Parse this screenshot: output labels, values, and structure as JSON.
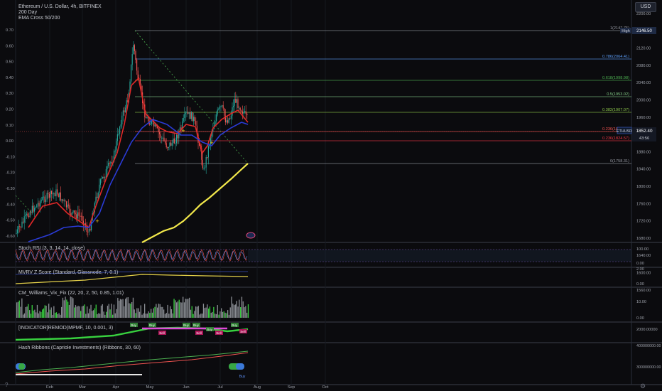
{
  "header": {
    "title": "Ethereum / U.S. Dollar, 4h, BITFINEX",
    "indicator1": "200 Day",
    "indicator2": "EMA Cross 50/200"
  },
  "currency_button": "USD",
  "left_axis": [
    "0.70",
    "0.60",
    "0.50",
    "0.40",
    "0.30",
    "0.20",
    "0.10",
    "0.00",
    "-0.10",
    "-0.20",
    "-0.30",
    "-0.40",
    "-0.50",
    "-0.60"
  ],
  "right_axis": [
    "2200.00",
    "2160.00",
    "2120.00",
    "2080.00",
    "2040.00",
    "2000.00",
    "1960.00",
    "1920.00",
    "1880.00",
    "1840.00",
    "1800.00",
    "1760.00",
    "1720.00",
    "1680.00",
    "1640.00",
    "1600.00",
    "1560.00"
  ],
  "fib_labels": [
    "1(2147.75)",
    "0.786(2064.41)",
    "0.618(1998.98)",
    "0.5(1953.02)",
    "0.382(1907.07)",
    "0.236(1850.22)",
    "0.236(1824.57)",
    "0(1758.31)"
  ],
  "high_badge": {
    "label": "High",
    "value": "2146.50"
  },
  "price_badge": {
    "symbol": "ETHUSD",
    "price": "1852.40",
    "countdown": "43:56"
  },
  "panes": {
    "stoch": {
      "label": "Stoch RSI (3, 3, 14, 14, close)",
      "axis": [
        "100.00",
        "0.00"
      ]
    },
    "mvrv": {
      "label": "MVRV Z Score (Standard, Glassnode, 7, 0.1)",
      "axis": [
        "2.00",
        "0.00"
      ]
    },
    "vix": {
      "label": "CM_Williams_Vix_Fix (22, 20, 2, 50, 0.85, 1.01)",
      "axis": [
        "10.00",
        "0.00"
      ]
    },
    "remod": {
      "label": "[INDICATOR]REMOD(MPMF, 10, 0.001, 3)",
      "axis": [
        "2000.00000"
      ]
    },
    "hash": {
      "label": "Hash Ribbons (Capriole Investments) (Ribbons, 30, 60)",
      "axis": [
        "400000000.00",
        "300000000.00"
      ]
    }
  },
  "signals": {
    "buy": "Buy",
    "sell": "Sell"
  },
  "time_axis": [
    "Feb",
    "Mar",
    "Apr",
    "May",
    "Jun",
    "Jul",
    "Aug",
    "Sep",
    "Oct"
  ],
  "colors": {
    "bull": "#26a69a",
    "bear": "#ef5350",
    "ema_red": "#e02828",
    "ema_blue": "#2a3bd6",
    "ma200": "#f3e94b",
    "green_signal": "#38d13f",
    "magenta": "#e04ad9"
  }
}
